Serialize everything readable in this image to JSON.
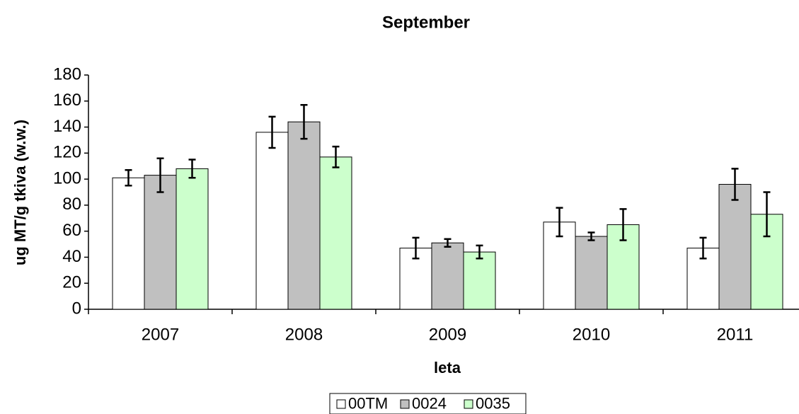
{
  "chart_data": {
    "type": "bar",
    "title": "September",
    "x_label": "leta",
    "y_label": "ug MT/g tkiva (w.w.)",
    "categories": [
      "2007",
      "2008",
      "2009",
      "2010",
      "2011"
    ],
    "series": [
      {
        "name": "00TM",
        "color": "#ffffff",
        "values": [
          101,
          136,
          47,
          67,
          47
        ],
        "errors": [
          6,
          12,
          8,
          11,
          8
        ]
      },
      {
        "name": "0024",
        "color": "#c0c0c0",
        "values": [
          103,
          144,
          51,
          56,
          96
        ],
        "errors": [
          13,
          13,
          3,
          3,
          12
        ]
      },
      {
        "name": "0035",
        "color": "#ccffcc",
        "values": [
          108,
          117,
          44,
          65,
          73
        ],
        "errors": [
          7,
          8,
          5,
          12,
          17
        ]
      }
    ],
    "ylim": [
      0,
      180
    ],
    "yticks": [
      0,
      20,
      40,
      60,
      80,
      100,
      120,
      140,
      160,
      180
    ],
    "grid": false,
    "legend": "bottom"
  }
}
